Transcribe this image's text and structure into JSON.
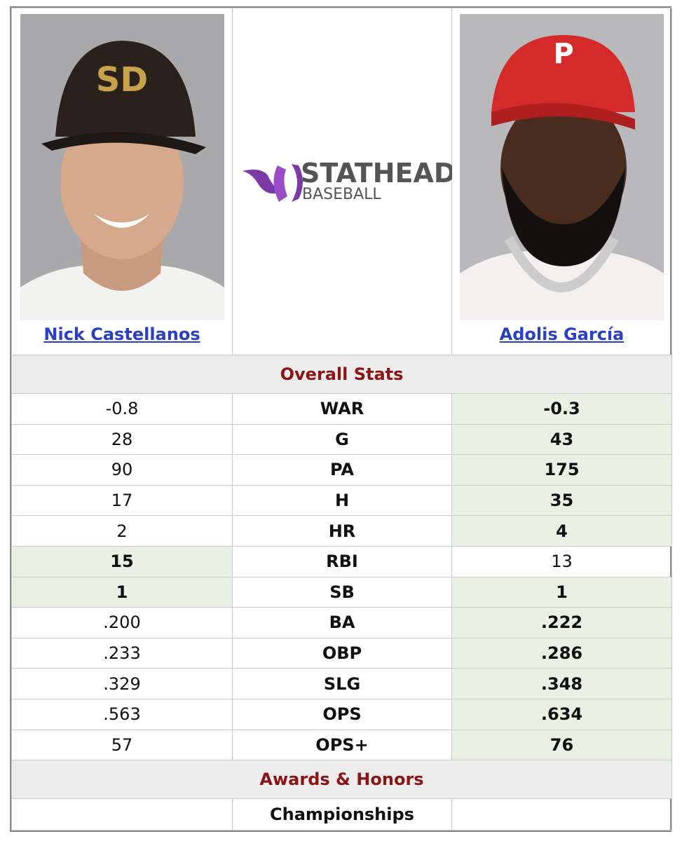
{
  "players": [
    {
      "name": "Nick Castellanos"
    },
    {
      "name": "Adolis García"
    }
  ],
  "logo": {
    "line1": "STATHEAD",
    "line2": "BASEBALL"
  },
  "sections": {
    "overall": "Overall Stats",
    "awards": "Awards & Honors"
  },
  "rows": [
    {
      "stat": "WAR",
      "left": "-0.8",
      "right": "-0.3",
      "better": "right"
    },
    {
      "stat": "G",
      "left": "28",
      "right": "43",
      "better": "right"
    },
    {
      "stat": "PA",
      "left": "90",
      "right": "175",
      "better": "right"
    },
    {
      "stat": "H",
      "left": "17",
      "right": "35",
      "better": "right"
    },
    {
      "stat": "HR",
      "left": "2",
      "right": "4",
      "better": "right"
    },
    {
      "stat": "RBI",
      "left": "15",
      "right": "13",
      "better": "left"
    },
    {
      "stat": "SB",
      "left": "1",
      "right": "1",
      "better": "both"
    },
    {
      "stat": "BA",
      "left": ".200",
      "right": ".222",
      "better": "right"
    },
    {
      "stat": "OBP",
      "left": ".233",
      "right": ".286",
      "better": "right"
    },
    {
      "stat": "SLG",
      "left": ".329",
      "right": ".348",
      "better": "right"
    },
    {
      "stat": "OPS",
      "left": ".563",
      "right": ".634",
      "better": "right"
    },
    {
      "stat": "OPS+",
      "left": "57",
      "right": "76",
      "better": "right"
    }
  ],
  "awards_rows": [
    {
      "label": "Championships"
    }
  ]
}
